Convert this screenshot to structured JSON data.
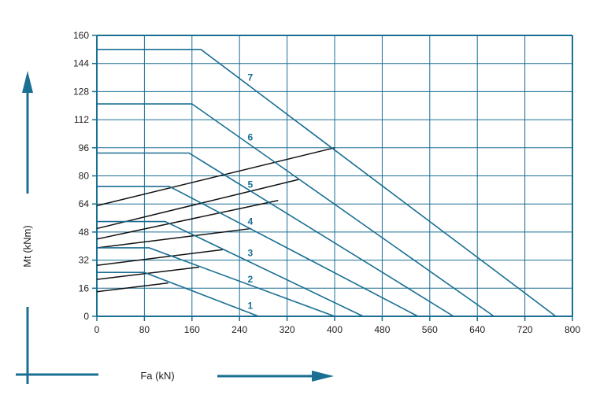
{
  "chart_data": {
    "type": "line",
    "xlabel": "Fa (kN)",
    "ylabel": "Mt (kNm)",
    "xlim": [
      0,
      800
    ],
    "ylim": [
      0,
      160
    ],
    "xticks": [
      0,
      80,
      160,
      240,
      320,
      400,
      480,
      560,
      640,
      720,
      800
    ],
    "yticks": [
      0,
      16,
      32,
      48,
      64,
      80,
      96,
      112,
      128,
      144,
      160
    ],
    "grid": true,
    "colors": {
      "curves": "#1a6f93",
      "secondary": "#111111",
      "axes": "#1a6f93",
      "grid": "#1a6f93"
    },
    "series": [
      {
        "name": "1",
        "points": [
          [
            0,
            25
          ],
          [
            80,
            25
          ],
          [
            272,
            0
          ]
        ]
      },
      {
        "name": "2",
        "points": [
          [
            0,
            39
          ],
          [
            88,
            39
          ],
          [
            400,
            0
          ]
        ]
      },
      {
        "name": "3",
        "points": [
          [
            0,
            54
          ],
          [
            115,
            54
          ],
          [
            448,
            0
          ]
        ]
      },
      {
        "name": "4",
        "points": [
          [
            0,
            74
          ],
          [
            122,
            74
          ],
          [
            540,
            0
          ]
        ]
      },
      {
        "name": "5",
        "points": [
          [
            0,
            93
          ],
          [
            155,
            93
          ],
          [
            600,
            0
          ]
        ]
      },
      {
        "name": "6",
        "points": [
          [
            0,
            121
          ],
          [
            160,
            121
          ],
          [
            668,
            0
          ]
        ]
      },
      {
        "name": "7",
        "points": [
          [
            0,
            152
          ],
          [
            175,
            152
          ],
          [
            772,
            0
          ]
        ]
      }
    ],
    "secondary_lines": [
      {
        "points": [
          [
            0,
            14
          ],
          [
            120,
            19
          ]
        ]
      },
      {
        "points": [
          [
            0,
            21
          ],
          [
            172,
            28
          ]
        ]
      },
      {
        "points": [
          [
            0,
            29
          ],
          [
            212,
            38
          ]
        ]
      },
      {
        "points": [
          [
            0,
            39
          ],
          [
            260,
            50
          ]
        ]
      },
      {
        "points": [
          [
            0,
            44
          ],
          [
            305,
            66
          ]
        ]
      },
      {
        "points": [
          [
            0,
            50
          ],
          [
            340,
            78
          ]
        ]
      },
      {
        "points": [
          [
            0,
            63
          ],
          [
            400,
            96
          ]
        ]
      }
    ],
    "labels": [
      {
        "text": "1",
        "x": 258,
        "y": 6
      },
      {
        "text": "2",
        "x": 258,
        "y": 21
      },
      {
        "text": "3",
        "x": 258,
        "y": 36
      },
      {
        "text": "4",
        "x": 258,
        "y": 54
      },
      {
        "text": "5",
        "x": 258,
        "y": 75
      },
      {
        "text": "6",
        "x": 258,
        "y": 102
      },
      {
        "text": "7",
        "x": 258,
        "y": 136
      }
    ]
  }
}
